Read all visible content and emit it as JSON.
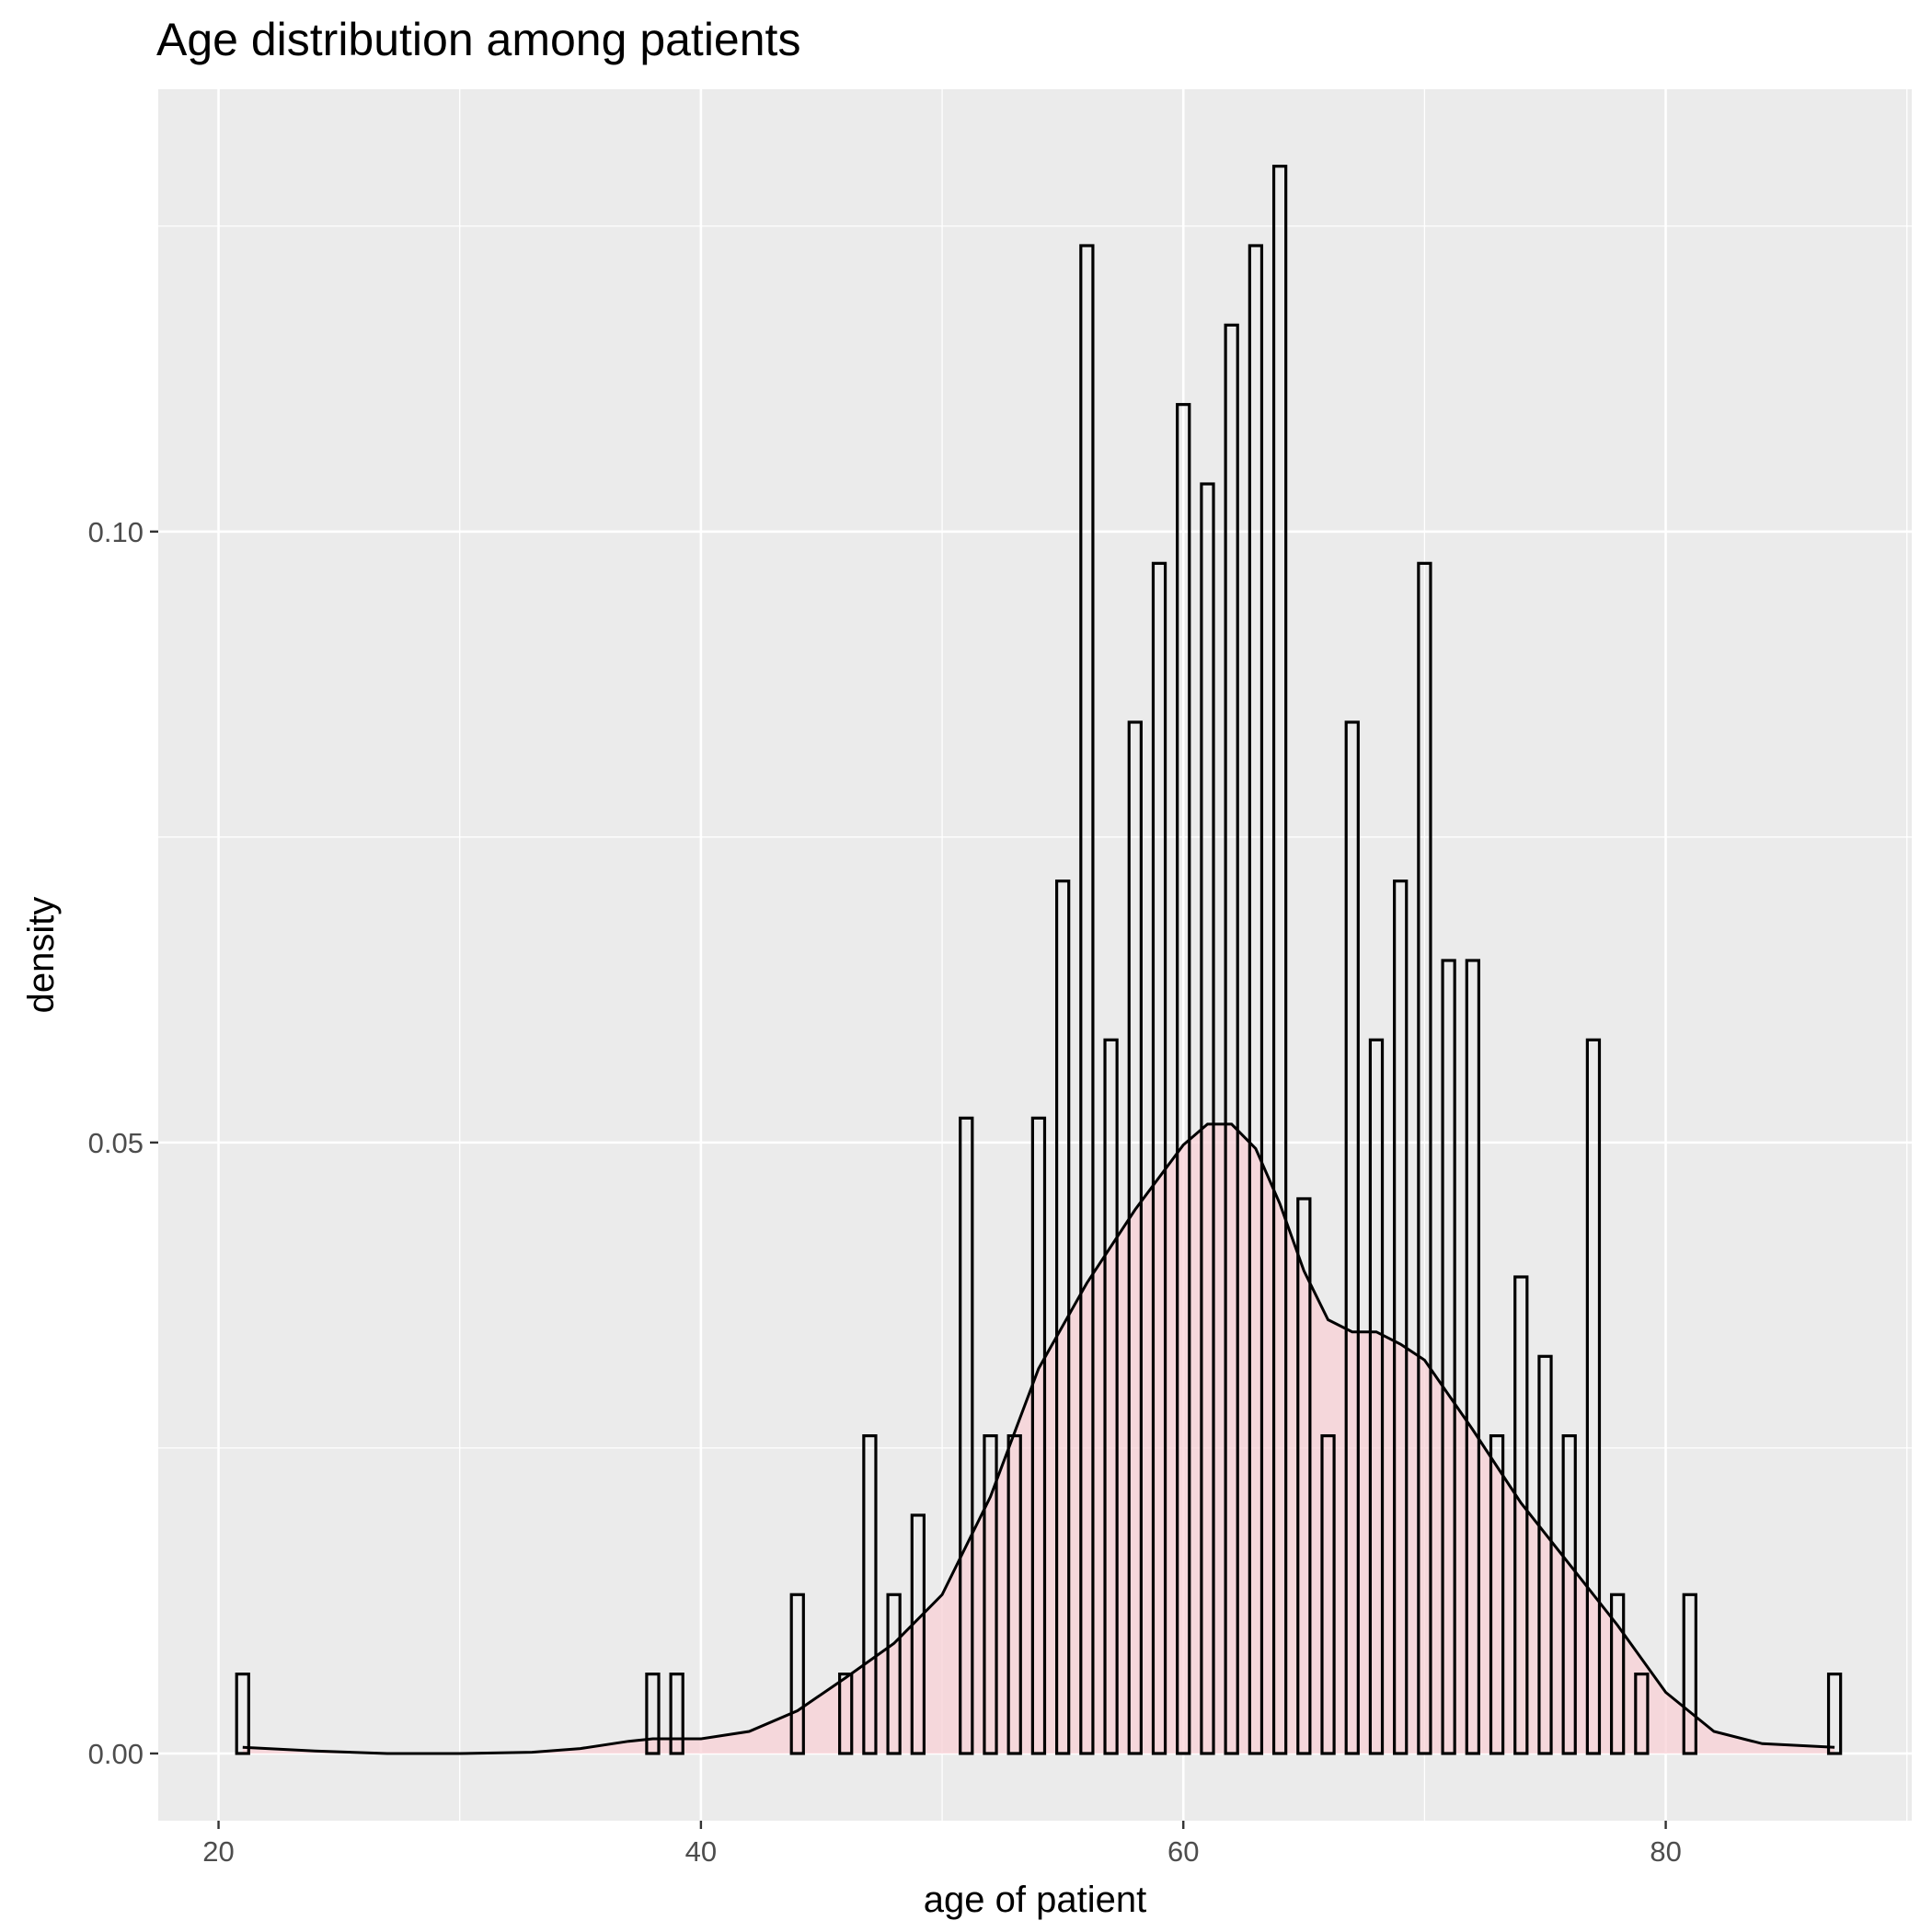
{
  "chart_data": {
    "type": "bar",
    "subtype": "histogram-with-density",
    "title": "Age distribution among patients",
    "xlabel": "age of patient",
    "ylabel": "density",
    "xlim": [
      17.5,
      90.2
    ],
    "ylim": [
      -0.0055,
      0.1362
    ],
    "x_ticks": [
      20,
      40,
      60,
      80
    ],
    "x_minor_ticks": [
      30,
      50,
      70,
      90
    ],
    "y_ticks": [
      0.0,
      0.05,
      0.1
    ],
    "y_tick_labels": [
      "0.00",
      "0.05",
      "0.10"
    ],
    "y_minor_ticks": [
      0.025,
      0.075,
      0.125
    ],
    "grid": true,
    "panel_background": "#ebebeb",
    "bar_outline_color": "#000000",
    "density_fill_color": "#f8d0d5",
    "bin_width": 0.5,
    "bars": [
      {
        "x": 21,
        "density": 0.0065
      },
      {
        "x": 38,
        "density": 0.0065
      },
      {
        "x": 39,
        "density": 0.0065
      },
      {
        "x": 44,
        "density": 0.013
      },
      {
        "x": 46,
        "density": 0.0065
      },
      {
        "x": 47,
        "density": 0.026
      },
      {
        "x": 48,
        "density": 0.013
      },
      {
        "x": 49,
        "density": 0.0195
      },
      {
        "x": 51,
        "density": 0.052
      },
      {
        "x": 52,
        "density": 0.026
      },
      {
        "x": 53,
        "density": 0.026
      },
      {
        "x": 54,
        "density": 0.052
      },
      {
        "x": 55,
        "density": 0.0714
      },
      {
        "x": 56,
        "density": 0.1234
      },
      {
        "x": 57,
        "density": 0.0584
      },
      {
        "x": 58,
        "density": 0.0844
      },
      {
        "x": 59,
        "density": 0.0974
      },
      {
        "x": 60,
        "density": 0.1104
      },
      {
        "x": 61,
        "density": 0.1039
      },
      {
        "x": 62,
        "density": 0.1169
      },
      {
        "x": 63,
        "density": 0.1234
      },
      {
        "x": 64,
        "density": 0.1299
      },
      {
        "x": 65,
        "density": 0.0454
      },
      {
        "x": 66,
        "density": 0.026
      },
      {
        "x": 67,
        "density": 0.0844
      },
      {
        "x": 68,
        "density": 0.0584
      },
      {
        "x": 69,
        "density": 0.0714
      },
      {
        "x": 70,
        "density": 0.0974
      },
      {
        "x": 71,
        "density": 0.0649
      },
      {
        "x": 72,
        "density": 0.0649
      },
      {
        "x": 73,
        "density": 0.026
      },
      {
        "x": 74,
        "density": 0.039
      },
      {
        "x": 75,
        "density": 0.0325
      },
      {
        "x": 76,
        "density": 0.026
      },
      {
        "x": 77,
        "density": 0.0584
      },
      {
        "x": 78,
        "density": 0.013
      },
      {
        "x": 79,
        "density": 0.0065
      },
      {
        "x": 81,
        "density": 0.013
      },
      {
        "x": 87,
        "density": 0.0065
      }
    ],
    "density_curve": {
      "x": [
        21,
        24,
        27,
        30,
        33,
        35,
        37,
        38,
        40,
        42,
        44,
        46,
        48,
        50,
        52,
        54,
        56,
        58,
        60,
        61,
        62,
        63,
        64,
        65,
        66,
        67,
        68,
        69,
        70,
        72,
        74,
        76,
        78,
        80,
        82,
        84,
        87
      ],
      "y": [
        0.0005,
        0.0002,
        0.0,
        0.0,
        0.0001,
        0.0004,
        0.001,
        0.0012,
        0.0012,
        0.0018,
        0.0035,
        0.0062,
        0.009,
        0.013,
        0.021,
        0.0315,
        0.0385,
        0.0445,
        0.0498,
        0.0515,
        0.0515,
        0.0495,
        0.045,
        0.0395,
        0.0355,
        0.0345,
        0.0345,
        0.0335,
        0.0322,
        0.0265,
        0.0205,
        0.0155,
        0.0105,
        0.005,
        0.0018,
        0.0008,
        0.0005
      ]
    }
  }
}
